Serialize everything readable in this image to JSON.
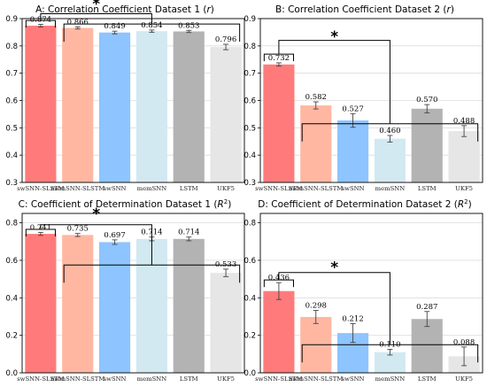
{
  "chart_data": [
    {
      "type": "bar",
      "title": "A: Correlation Coefficient Dataset 1 (r)",
      "title_main": "A: Correlation Coefficient Dataset 1 (",
      "title_var": "r",
      "title_end": ")",
      "categories": [
        "swSNN-SLSTM",
        "memSNN-SLSTM",
        "swSNN",
        "memSNN",
        "LSTM",
        "UKF5"
      ],
      "values": [
        0.874,
        0.866,
        0.849,
        0.854,
        0.853,
        0.796
      ],
      "value_labels": [
        "0.874",
        "0.866",
        "0.849",
        "0.854",
        "0.853",
        "0.796"
      ],
      "errors": [
        0.005,
        0.004,
        0.005,
        0.004,
        0.004,
        0.01
      ],
      "ylim": [
        0.3,
        0.9
      ],
      "yticks": [
        "0.3",
        "0.4",
        "0.5",
        "0.6",
        "0.7",
        "0.8",
        "0.9"
      ],
      "significance": "*",
      "grid": true
    },
    {
      "type": "bar",
      "title": "B: Correlation Coefficient Dataset 2 (r)",
      "title_main": "B: Correlation Coefficient Dataset 2 (",
      "title_var": "r",
      "title_end": ")",
      "categories": [
        "swSNN-SLSTM",
        "memSNN-SLSTM",
        "swSNN",
        "memSNN",
        "LSTM",
        "UKF5"
      ],
      "values": [
        0.732,
        0.582,
        0.527,
        0.46,
        0.57,
        0.488
      ],
      "value_labels": [
        "0.732",
        "0.582",
        "0.527",
        "0.460",
        "0.570",
        "0.488"
      ],
      "errors": [
        0.006,
        0.013,
        0.025,
        0.012,
        0.015,
        0.02
      ],
      "ylim": [
        0.3,
        0.9
      ],
      "yticks": [
        "0.3",
        "0.4",
        "0.5",
        "0.6",
        "0.7",
        "0.8",
        "0.9"
      ],
      "significance": "*",
      "grid": true
    },
    {
      "type": "bar",
      "title": "C: Coefficient of Determination Dataset 1 (R²)",
      "title_main": "C: Coefficient of Determination Dataset 1 (",
      "title_var": "R",
      "title_sup": "2",
      "title_end": ")",
      "categories": [
        "swSNN-SLSTM",
        "memSNN-SLSTM",
        "swSNN",
        "memSNN",
        "LSTM",
        "UKF5"
      ],
      "values": [
        0.741,
        0.735,
        0.697,
        0.714,
        0.714,
        0.533
      ],
      "value_labels": [
        "0.741",
        "0.735",
        "0.697",
        "0.714",
        "0.714",
        "0.533"
      ],
      "errors": [
        0.008,
        0.008,
        0.012,
        0.01,
        0.01,
        0.02
      ],
      "ylim": [
        0.0,
        0.85
      ],
      "yticks": [
        "0.0",
        "0.2",
        "0.4",
        "0.6",
        "0.8"
      ],
      "significance": "*",
      "grid": true
    },
    {
      "type": "bar",
      "title": "D: Coefficient of Determination Dataset 2 (R²)",
      "title_main": "D: Coefficient of Determination Dataset 2 (",
      "title_var": "R",
      "title_sup": "2",
      "title_end": ")",
      "categories": [
        "swSNN-SLSTM",
        "memSNN-SLSTM",
        "swSNN",
        "memSNN",
        "LSTM",
        "UKF5"
      ],
      "values": [
        0.436,
        0.298,
        0.212,
        0.11,
        0.287,
        0.088
      ],
      "value_labels": [
        "0.436",
        "0.298",
        "0.212",
        "0.110",
        "0.287",
        "0.088"
      ],
      "errors": [
        0.045,
        0.035,
        0.05,
        0.015,
        0.04,
        0.05
      ],
      "ylim": [
        0.0,
        0.85
      ],
      "yticks": [
        "0.0",
        "0.2",
        "0.4",
        "0.6",
        "0.8"
      ],
      "significance": "*",
      "grid": true
    }
  ],
  "colors": [
    "#ff7b7b",
    "#ffb7a2",
    "#8ec4ff",
    "#d2e9f1",
    "#b3b3b3",
    "#e6e6e6"
  ],
  "panel_background": "#ffffff",
  "grid_color": "#dcdcdc"
}
